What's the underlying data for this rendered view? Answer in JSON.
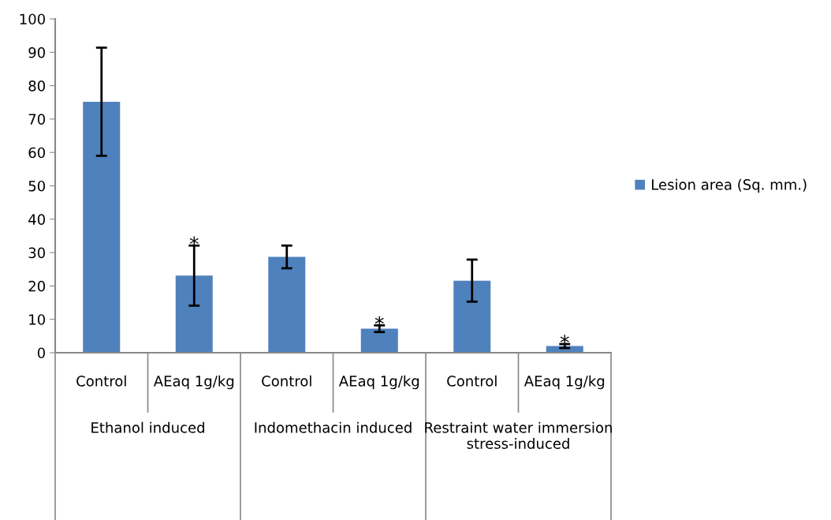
{
  "chart_data": {
    "type": "bar",
    "categories": [
      "Control",
      "AEaq 1g/kg",
      "Control",
      "AEaq 1g/kg",
      "Control",
      "AEaq 1g/kg"
    ],
    "series": [
      {
        "name": "Lesion area (Sq. mm.)",
        "color": "#4f81bd",
        "values": [
          75.2,
          23.1,
          28.7,
          7.2,
          21.6,
          2.0
        ],
        "errors": [
          16.2,
          9.0,
          3.4,
          1.0,
          6.3,
          0.6
        ]
      }
    ],
    "ylim": [
      0,
      100
    ],
    "yticks": [
      0,
      10,
      20,
      30,
      40,
      50,
      60,
      70,
      80,
      90,
      100
    ],
    "annotations": [
      "Ethanol induced",
      "Indomethacin induced",
      "Restraint water immersion stress-induced",
      "*",
      "*",
      "*"
    ],
    "grid": false,
    "legend": "right"
  }
}
